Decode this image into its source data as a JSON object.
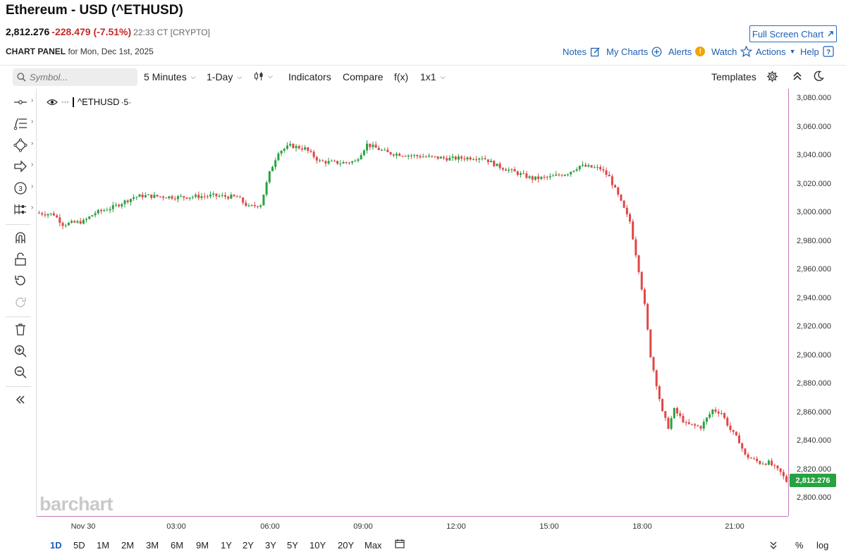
{
  "header": {
    "title": "Ethereum - USD (^ETHUSD)",
    "price": "2,812.276",
    "change": "-228.479 (-7.51%)",
    "time": "22:33 CT [CRYPTO]",
    "panel_label": "CHART PANEL",
    "panel_date": "for Mon, Dec 1st, 2025",
    "fullscreen": "Full Screen Chart",
    "links": {
      "notes": "Notes",
      "mycharts": "My Charts",
      "alerts": "Alerts",
      "watch": "Watch",
      "actions": "Actions",
      "help": "Help"
    }
  },
  "toolbar": {
    "symbol_placeholder": "Symbol...",
    "interval": "5 Minutes",
    "range": "1-Day",
    "indicators": "Indicators",
    "compare": "Compare",
    "fx": "f(x)",
    "layout": "1x1",
    "templates": "Templates"
  },
  "legend": {
    "symbol": "^ETHUSD",
    "interval": "·5·"
  },
  "watermark": "barchart",
  "colors": {
    "up": "#26a240",
    "down": "#e04646",
    "accent": "#1e5fb3",
    "axis": "#c878b8"
  },
  "icons": [
    "search-icon",
    "candle-icon",
    "line-tool-icon",
    "fib-tool-icon",
    "shape-tool-icon",
    "arrow-tool-icon",
    "count-tool-icon",
    "measure-tool-icon",
    "magnet-icon",
    "lock-icon",
    "undo-icon",
    "redo-icon",
    "trash-icon",
    "zoom-in-icon",
    "zoom-out-icon",
    "collapse-icon",
    "eye-icon",
    "gear-icon",
    "moon-icon"
  ],
  "bottom": {
    "ranges": [
      "1D",
      "5D",
      "1M",
      "2M",
      "3M",
      "6M",
      "9M",
      "1Y",
      "2Y",
      "3Y",
      "5Y",
      "10Y",
      "20Y",
      "Max"
    ],
    "active_range": "1D",
    "percent": "%",
    "log": "log"
  },
  "chart_data": {
    "type": "candlestick",
    "interval": "5 Minutes",
    "yticks": [
      "3,080.000",
      "3,060.000",
      "3,040.000",
      "3,020.000",
      "3,000.000",
      "2,980.000",
      "2,960.000",
      "2,940.000",
      "2,920.000",
      "2,900.000",
      "2,880.000",
      "2,860.000",
      "2,840.000",
      "2,820.000",
      "2,800.000"
    ],
    "ylim": [
      2795,
      3084
    ],
    "xticks": [
      "Nov 30",
      "03:00",
      "06:00",
      "09:00",
      "12:00",
      "15:00",
      "18:00",
      "21:00"
    ],
    "last_price": "2,812.276",
    "path_knots": [
      [
        0,
        3000
      ],
      [
        6,
        2999
      ],
      [
        9,
        2992
      ],
      [
        16,
        2994
      ],
      [
        20,
        3000
      ],
      [
        26,
        3004
      ],
      [
        33,
        3011
      ],
      [
        36,
        3012
      ],
      [
        48,
        3011
      ],
      [
        60,
        3012
      ],
      [
        68,
        3011
      ],
      [
        72,
        3004
      ],
      [
        76,
        3006
      ],
      [
        79,
        3028
      ],
      [
        82,
        3043
      ],
      [
        86,
        3047
      ],
      [
        91,
        3045
      ],
      [
        96,
        3036
      ],
      [
        103,
        3035
      ],
      [
        108,
        3036
      ],
      [
        112,
        3048
      ],
      [
        119,
        3042
      ],
      [
        128,
        3040
      ],
      [
        140,
        3038
      ],
      [
        151,
        3039
      ],
      [
        156,
        3033
      ],
      [
        168,
        3024
      ],
      [
        174,
        3025
      ],
      [
        180,
        3028
      ],
      [
        184,
        3033
      ],
      [
        191,
        3031
      ],
      [
        194,
        3025
      ],
      [
        197,
        3012
      ],
      [
        200,
        2998
      ],
      [
        201,
        2994
      ],
      [
        204,
        2960
      ],
      [
        206,
        2935
      ],
      [
        208,
        2900
      ],
      [
        210,
        2880
      ],
      [
        212,
        2860
      ],
      [
        214,
        2850
      ],
      [
        216,
        2862
      ],
      [
        220,
        2852
      ],
      [
        225,
        2850
      ],
      [
        229,
        2862
      ],
      [
        232,
        2860
      ],
      [
        235,
        2848
      ],
      [
        238,
        2840
      ],
      [
        240,
        2830
      ],
      [
        245,
        2825
      ],
      [
        248,
        2825
      ],
      [
        252,
        2818
      ],
      [
        254,
        2812
      ]
    ],
    "n_candles": 255
  }
}
